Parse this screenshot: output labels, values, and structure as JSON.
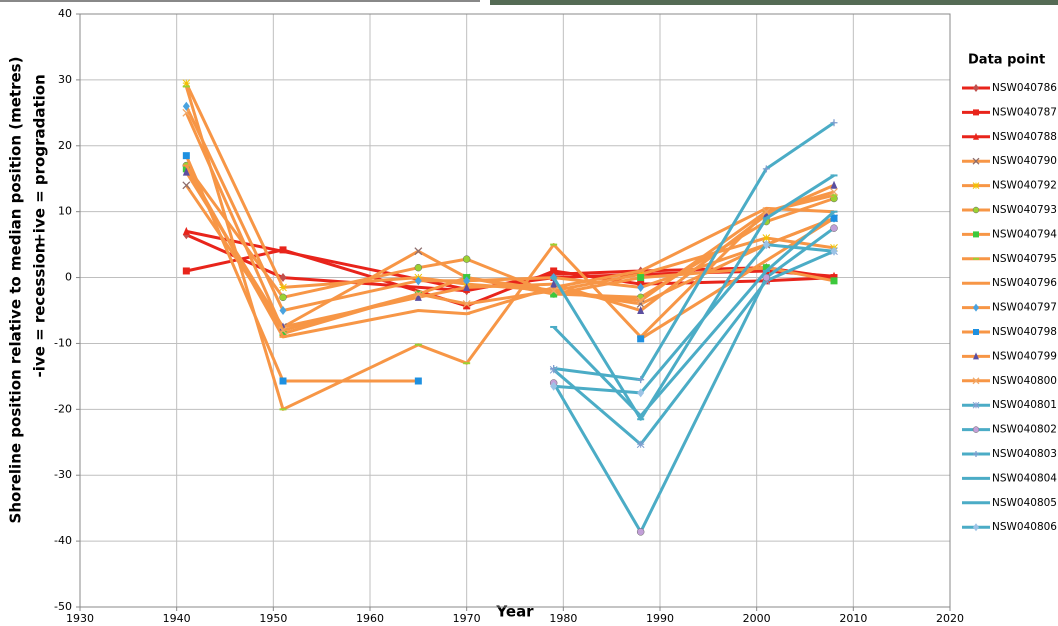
{
  "chart_data": {
    "type": "line",
    "x_label": "Year",
    "y_label": [
      "Shoreline position relative to median position (metres)",
      "+ive = progradation",
      "-ive = recession"
    ],
    "legend_title": "Data point",
    "xlim": [
      1930,
      2020
    ],
    "xticks": [
      1930,
      1940,
      1950,
      1960,
      1970,
      1980,
      1990,
      2000,
      2010,
      2020
    ],
    "ylim": [
      -50,
      40
    ],
    "yticks": [
      -50,
      -40,
      -30,
      -20,
      -10,
      0,
      10,
      20,
      30,
      40
    ],
    "grid": true,
    "legend": "right",
    "series": [
      {
        "name": "NSW040786",
        "color": "#e8241b",
        "marker": "diamond",
        "marker_color": "#c0504d",
        "x": [
          1941,
          1951,
          1970,
          1979,
          1988,
          2001,
          2008
        ],
        "values": [
          6.5,
          0,
          -2,
          0.5,
          1,
          1.5,
          0
        ]
      },
      {
        "name": "NSW040787",
        "color": "#e8241b",
        "marker": "square",
        "marker_color": "#e8241b",
        "x": [
          1941,
          1951,
          1970,
          1979,
          1988,
          2001,
          2008
        ],
        "values": [
          1,
          4.2,
          -4.3,
          1,
          -1,
          -0.5,
          0
        ]
      },
      {
        "name": "NSW040788",
        "color": "#e8241b",
        "marker": "triangle",
        "marker_color": "#e8241b",
        "x": [
          1941,
          1970,
          1979,
          1988,
          2001,
          2008
        ],
        "values": [
          7,
          -1.8,
          0,
          0.5,
          1,
          0.2
        ]
      },
      {
        "name": "NSW040790",
        "color": "#f79646",
        "marker": "x",
        "marker_color": "#8c6d6d",
        "x": [
          1941,
          1951,
          1965,
          1970,
          1979,
          1988,
          2001,
          2008
        ],
        "values": [
          14,
          -7.5,
          4,
          0,
          -2,
          -4,
          5,
          9
        ]
      },
      {
        "name": "NSW040792",
        "color": "#f79646",
        "marker": "star",
        "marker_color": "#f2c200",
        "x": [
          1941,
          1951,
          1965,
          1970,
          1979,
          1988,
          2001,
          2008
        ],
        "values": [
          29.5,
          -1.5,
          0,
          -1,
          -2,
          0.5,
          6,
          4.5
        ]
      },
      {
        "name": "NSW040793",
        "color": "#f79646",
        "marker": "circle",
        "marker_color": "#9bd132",
        "x": [
          1941,
          1951,
          1965,
          1970,
          1979,
          1988,
          2001,
          2008
        ],
        "values": [
          17,
          -3,
          1.5,
          2.8,
          -2.5,
          -3,
          8.5,
          12
        ]
      },
      {
        "name": "NSW040794",
        "color": "#f79646",
        "marker": "square",
        "marker_color": "#3cc83c",
        "x": [
          1941,
          1951,
          1965,
          1970,
          1979,
          1988,
          2001,
          2008
        ],
        "values": [
          16.5,
          -8.5,
          -2.5,
          0,
          -2.5,
          0,
          1.5,
          -0.5
        ]
      },
      {
        "name": "NSW040795",
        "color": "#f79646",
        "marker": "dash",
        "marker_color": "#9bd132",
        "x": [
          1941,
          1951,
          1965,
          1970,
          1979,
          1988,
          2001,
          2008
        ],
        "values": [
          29,
          -20,
          -10.2,
          -13,
          5,
          -9,
          10,
          12.5
        ]
      },
      {
        "name": "NSW040796",
        "color": "#f79646",
        "marker": "dash",
        "marker_color": "#f79646",
        "x": [
          1941,
          1951,
          1965,
          1970,
          1979,
          1988,
          2001,
          2008
        ],
        "values": [
          17,
          -9,
          -5,
          -5.5,
          -1.5,
          1,
          10.5,
          10
        ]
      },
      {
        "name": "NSW040797",
        "color": "#f79646",
        "marker": "diamond",
        "marker_color": "#4aa3df",
        "x": [
          1941,
          1951,
          1965,
          1970,
          1979,
          1988,
          2001,
          2008
        ],
        "values": [
          26,
          -5,
          -0.5,
          -0.5,
          0,
          -1.5,
          5,
          9
        ]
      },
      {
        "name": "NSW040798",
        "color": "#f79646",
        "marker": "square",
        "marker_color": "#1e90e0",
        "x": [
          1941,
          1951,
          1965,
          1970,
          1988,
          2008
        ],
        "values": [
          18.5,
          -15.7,
          -15.7,
          null,
          -9.3,
          9
        ]
      },
      {
        "name": "NSW040799",
        "color": "#f79646",
        "marker": "triangle",
        "marker_color": "#5b4ea0",
        "x": [
          1941,
          1951,
          1965,
          1970,
          1979,
          1988,
          2001,
          2008
        ],
        "values": [
          16,
          -7.5,
          -3,
          -1.5,
          -1,
          -5,
          9.5,
          14
        ]
      },
      {
        "name": "NSW040800",
        "color": "#f79646",
        "marker": "x",
        "marker_color": "#f0a868",
        "x": [
          1941,
          1951,
          1965,
          1970,
          1979,
          1988,
          2001,
          2008
        ],
        "values": [
          25,
          -8,
          -2.5,
          -4,
          -2,
          -3.5,
          10,
          13
        ]
      },
      {
        "name": "NSW040801",
        "color": "#4bacc6",
        "marker": "star",
        "marker_color": "#7f9ecf",
        "x": [
          1979,
          1988,
          2001,
          2008
        ],
        "values": [
          -14,
          -25.3,
          -0.5,
          4
        ]
      },
      {
        "name": "NSW040802",
        "color": "#4bacc6",
        "marker": "circle",
        "marker_color": "#c29fd8",
        "x": [
          1979,
          1988,
          2001,
          2008
        ],
        "values": [
          -16,
          -38.6,
          0,
          7.5
        ]
      },
      {
        "name": "NSW040803",
        "color": "#4bacc6",
        "marker": "plus",
        "marker_color": "#7f9ecf",
        "x": [
          1979,
          1988,
          2001,
          2008
        ],
        "values": [
          -13.8,
          -15.5,
          16.5,
          23.5
        ]
      },
      {
        "name": "NSW040804",
        "color": "#4bacc6",
        "marker": "dash",
        "marker_color": "#4bacc6",
        "x": [
          1979,
          1988,
          2001,
          2008
        ],
        "values": [
          -7.5,
          -21,
          1,
          10
        ]
      },
      {
        "name": "NSW040805",
        "color": "#4bacc6",
        "marker": "dash",
        "marker_color": "#4bacc6",
        "x": [
          1979,
          1988,
          2001,
          2008
        ],
        "values": [
          0,
          -21.5,
          9,
          15.5
        ]
      },
      {
        "name": "NSW040806",
        "color": "#4bacc6",
        "marker": "diamond",
        "marker_color": "#9cc3e6",
        "x": [
          1979,
          1988,
          2001,
          2008
        ],
        "values": [
          -16.5,
          -17.5,
          5,
          4
        ]
      }
    ]
  }
}
